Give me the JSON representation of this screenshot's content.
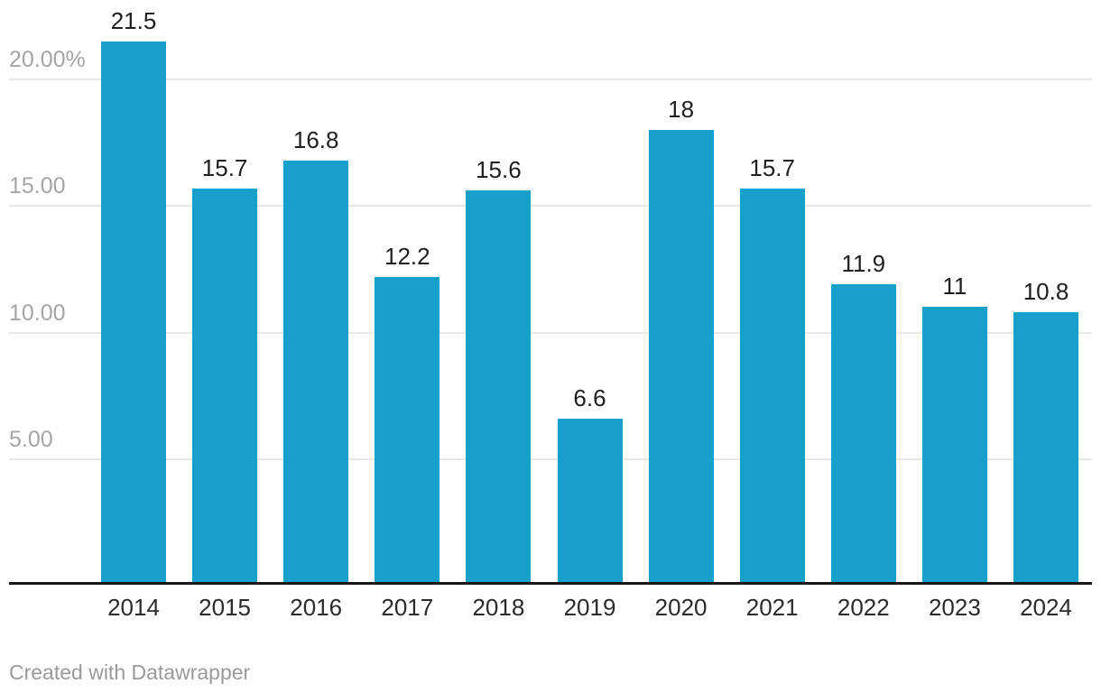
{
  "chart_data": {
    "type": "bar",
    "title": "",
    "xlabel": "",
    "ylabel": "",
    "categories": [
      "2014",
      "2015",
      "2016",
      "2017",
      "2018",
      "2019",
      "2020",
      "2021",
      "2022",
      "2023",
      "2024"
    ],
    "values": [
      21.5,
      15.7,
      16.8,
      12.2,
      15.6,
      6.6,
      18,
      15.7,
      11.9,
      11,
      10.8
    ],
    "value_labels": [
      "21.5",
      "15.7",
      "16.8",
      "12.2",
      "15.6",
      "6.6",
      "18",
      "15.7",
      "11.9",
      "11",
      "10.8"
    ],
    "ylim": [
      0,
      22
    ],
    "y_ticks": [
      {
        "value": 5,
        "label": "5.00"
      },
      {
        "value": 10,
        "label": "10.00"
      },
      {
        "value": 15,
        "label": "15.00"
      },
      {
        "value": 20,
        "label": "20.00%"
      }
    ],
    "grid": "horizontal-only",
    "legend": "none",
    "bar_color": "#18a0cc"
  },
  "footer": {
    "credit": "Created with Datawrapper"
  },
  "colors": {
    "bar": "#18a0cc",
    "gridline": "#e8e8e8",
    "axis_line": "#161616",
    "tick_label": "#a5a5a5",
    "data_label": "#1f1f1f",
    "category_label": "#2b2b2b",
    "credit": "#9a9a9a",
    "background": "#ffffff"
  }
}
